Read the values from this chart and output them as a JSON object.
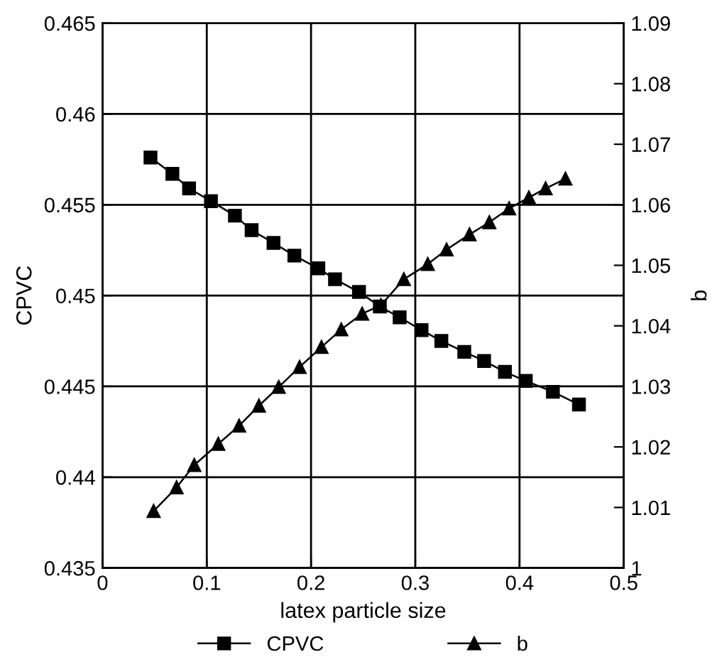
{
  "chart_data": {
    "type": "line",
    "xlabel": "latex particle size",
    "ylabel": "CPVC",
    "y2label": "b",
    "series": [
      {
        "name": "CPVC",
        "color": "#000000",
        "marker": "square",
        "x": [
          0.046,
          0.067,
          0.083,
          0.104,
          0.127,
          0.143,
          0.164,
          0.184,
          0.207,
          0.223,
          0.246,
          0.266,
          0.285,
          0.306,
          0.325,
          0.347,
          0.366,
          0.386,
          0.406,
          0.432,
          0.457
        ],
        "values": [
          0.4576,
          0.4567,
          0.4559,
          0.4552,
          0.4544,
          0.4536,
          0.4529,
          0.4522,
          0.4515,
          0.4509,
          0.4502,
          0.4494,
          0.4488,
          0.4481,
          0.4475,
          0.4469,
          0.4464,
          0.4458,
          0.4453,
          0.4447,
          0.444
        ]
      },
      {
        "name": "b",
        "color": "#000000",
        "marker": "triangle",
        "axis": "y2",
        "x": [
          0.049,
          0.071,
          0.088,
          0.111,
          0.131,
          0.15,
          0.169,
          0.189,
          0.21,
          0.229,
          0.249,
          0.267,
          0.289,
          0.312,
          0.33,
          0.352,
          0.371,
          0.39,
          0.409,
          0.425,
          0.444
        ],
        "values": [
          1.0094,
          1.0133,
          1.017,
          1.0205,
          1.0235,
          1.0268,
          1.0299,
          1.0332,
          1.0365,
          1.0394,
          1.042,
          1.0434,
          1.0477,
          1.0502,
          1.0526,
          1.0551,
          1.0571,
          1.0594,
          1.0612,
          1.0627,
          1.0643
        ]
      }
    ],
    "xlim": [
      0,
      0.5
    ],
    "xticks": [
      0,
      0.1,
      0.2,
      0.3,
      0.4,
      0.5
    ],
    "ylim": [
      0.435,
      0.465
    ],
    "yticks": [
      0.435,
      0.44,
      0.445,
      0.45,
      0.455,
      0.46,
      0.465
    ],
    "y2lim": [
      1,
      1.09
    ],
    "y2ticks": [
      1,
      1.01,
      1.02,
      1.03,
      1.04,
      1.05,
      1.06,
      1.07,
      1.08,
      1.09
    ],
    "grid": true,
    "legend": "bottom",
    "line_style": "solid"
  }
}
